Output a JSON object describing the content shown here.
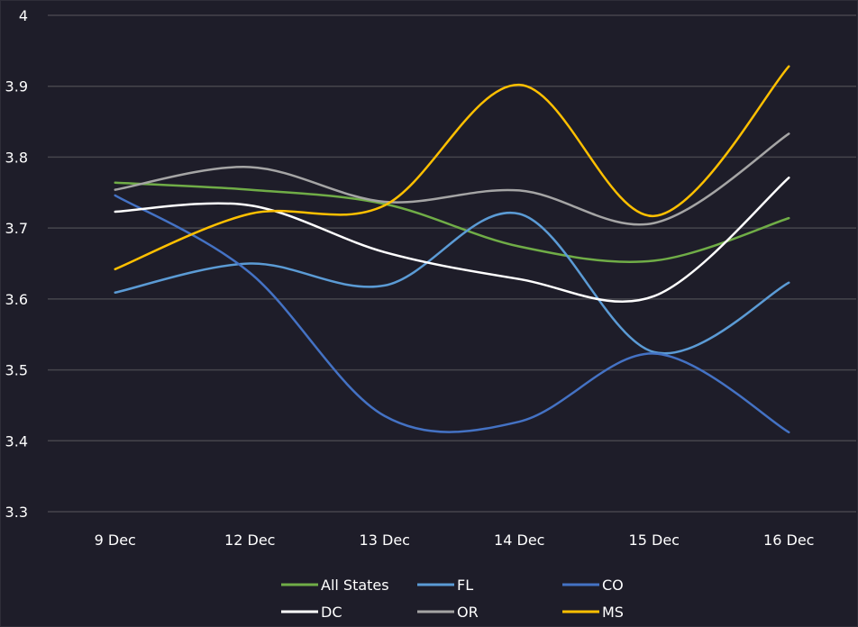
{
  "chart_data": {
    "type": "line",
    "title": "",
    "xlabel": "",
    "ylabel": "",
    "categories": [
      "9 Dec",
      "12 Dec",
      "13 Dec",
      "14 Dec",
      "15 Dec",
      "16 Dec"
    ],
    "ylim": [
      3.3,
      4.0
    ],
    "yticks": [
      "3.3",
      "3.4",
      "3.5",
      "3.6",
      "3.7",
      "3.8",
      "3.9",
      "4"
    ],
    "yticks_values": [
      3.3,
      3.4,
      3.5,
      3.6,
      3.7,
      3.8,
      3.9,
      4.0
    ],
    "grid": true,
    "smooth": true,
    "legend_position": "bottom",
    "series": [
      {
        "name": "All States",
        "color": "#70ad47",
        "values": [
          3.764,
          3.754,
          3.734,
          3.674,
          3.654,
          3.714
        ]
      },
      {
        "name": "FL",
        "color": "#5b9bd5",
        "values": [
          3.609,
          3.65,
          3.619,
          3.72,
          3.525,
          3.623
        ]
      },
      {
        "name": "CO",
        "color": "#4472c4",
        "values": [
          3.746,
          3.637,
          3.435,
          3.427,
          3.523,
          3.412
        ]
      },
      {
        "name": "DC",
        "color": "#ffffff",
        "values": [
          3.723,
          3.732,
          3.666,
          3.628,
          3.604,
          3.771
        ]
      },
      {
        "name": "OR",
        "color": "#a5a5a5",
        "values": [
          3.754,
          3.786,
          3.737,
          3.753,
          3.707,
          3.833
        ]
      },
      {
        "name": "MS",
        "color": "#ffc000",
        "values": [
          3.642,
          3.72,
          3.732,
          3.902,
          3.717,
          3.928
        ]
      }
    ]
  }
}
